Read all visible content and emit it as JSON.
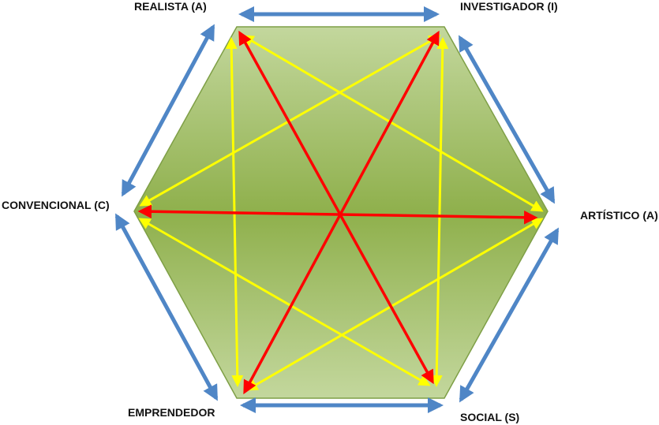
{
  "labels": {
    "realista": "REALISTA (A)",
    "investigador": "INVESTIGADOR (I)",
    "convencional": "CONVENCIONAL (C)",
    "artistico": "ARTÍSTICO (A)",
    "emprendedor": "EMPRENDEDOR",
    "social": "SOCIAL (S)"
  },
  "colors": {
    "hexagon_edge": "#e4edd2",
    "hexagon_center": "#8fb04c",
    "hexagon_stroke": "#7e9f46",
    "adjacent_arrows": "#4f86c6",
    "alternate_arrows": "#ffff00",
    "opposite_arrows": "#ff0000"
  }
}
